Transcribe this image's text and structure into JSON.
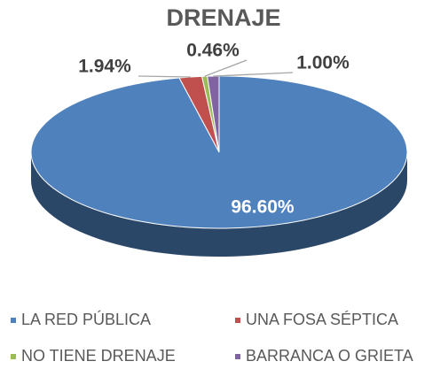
{
  "chart_data": {
    "type": "pie",
    "title": "DRENAJE",
    "categories": [
      "LA RED PÚBLICA",
      "UNA FOSA SÉPTICA",
      "NO TIENE DRENAJE",
      "BARRANCA O GRIETA"
    ],
    "values": [
      96.6,
      1.94,
      0.46,
      1.0
    ],
    "value_labels": [
      "96.60%",
      "1.94%",
      "0.46%",
      "1.00%"
    ],
    "colors": [
      "#4f81bd",
      "#c0504d",
      "#9bbb59",
      "#8064a2"
    ],
    "legend": "bottom"
  }
}
